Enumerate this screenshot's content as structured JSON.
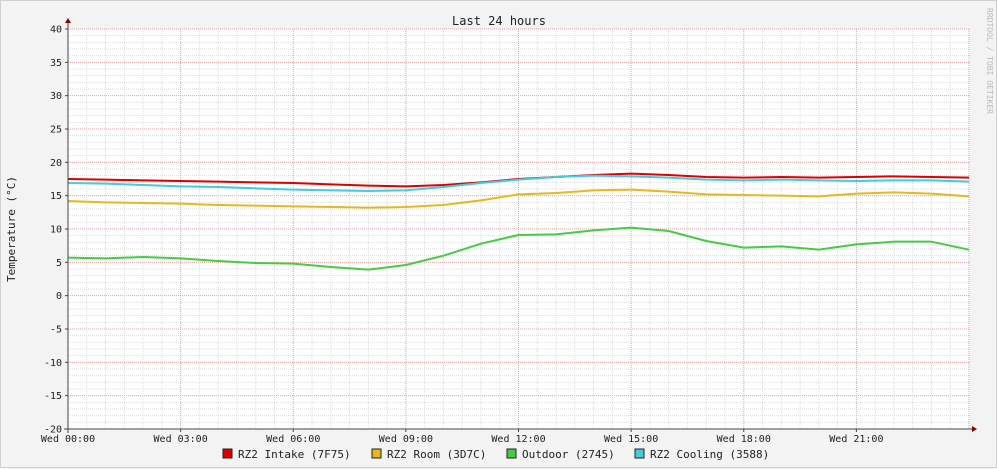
{
  "chart_data": {
    "type": "line",
    "title": "Last 24 hours",
    "ylabel": "Temperature (°C)",
    "xlabel": "",
    "watermark": "RRDTOOL / TOBI OETIKER",
    "ylim": [
      -20,
      40
    ],
    "yticks": [
      "40",
      "35",
      "30",
      "25",
      "20",
      "15",
      "10",
      "5",
      "0",
      "-5",
      "-10",
      "-15",
      "-20"
    ],
    "ytick_values": [
      40,
      35,
      30,
      25,
      20,
      15,
      10,
      5,
      0,
      -5,
      -10,
      -15,
      -20
    ],
    "x_range_hours": [
      0,
      24
    ],
    "xtick_labels": [
      "Wed 00:00",
      "Wed 03:00",
      "Wed 06:00",
      "Wed 09:00",
      "Wed 12:00",
      "Wed 15:00",
      "Wed 18:00",
      "Wed 21:00"
    ],
    "xtick_hours": [
      0,
      3,
      6,
      9,
      12,
      15,
      18,
      21
    ],
    "grid": true,
    "legend_position": "bottom",
    "x_hours": [
      0,
      1,
      2,
      3,
      4,
      5,
      6,
      7,
      8,
      9,
      10,
      11,
      12,
      13,
      14,
      15,
      16,
      17,
      18,
      19,
      20,
      21,
      22,
      23,
      24
    ],
    "series": [
      {
        "name": "RZ2 Intake (7F75)",
        "color": "#dd0000",
        "values": [
          17.5,
          17.4,
          17.3,
          17.2,
          17.1,
          17.0,
          16.9,
          16.7,
          16.5,
          16.4,
          16.6,
          17.0,
          17.5,
          17.8,
          18.1,
          18.3,
          18.1,
          17.8,
          17.7,
          17.8,
          17.7,
          17.8,
          17.9,
          17.8,
          17.7
        ]
      },
      {
        "name": "RZ2 Room (3D7C)",
        "color": "#e6b820",
        "values": [
          14.2,
          14.0,
          13.9,
          13.8,
          13.6,
          13.5,
          13.4,
          13.3,
          13.2,
          13.3,
          13.6,
          14.3,
          15.2,
          15.4,
          15.8,
          15.9,
          15.6,
          15.2,
          15.1,
          15.0,
          14.9,
          15.3,
          15.5,
          15.3,
          14.9
        ]
      },
      {
        "name": "Outdoor (2745)",
        "color": "#44cc44",
        "values": [
          5.7,
          5.6,
          5.8,
          5.6,
          5.2,
          4.9,
          4.8,
          4.3,
          3.9,
          4.6,
          6.0,
          7.8,
          9.1,
          9.2,
          9.8,
          10.2,
          9.7,
          8.2,
          7.2,
          7.4,
          6.9,
          7.7,
          8.1,
          8.1,
          6.9
        ]
      },
      {
        "name": "RZ2 Cooling (3588)",
        "color": "#44ccdd",
        "values": [
          16.9,
          16.8,
          16.6,
          16.4,
          16.3,
          16.1,
          15.9,
          15.8,
          15.7,
          15.8,
          16.3,
          16.9,
          17.4,
          17.8,
          18.0,
          17.9,
          17.7,
          17.4,
          17.3,
          17.4,
          17.3,
          17.2,
          17.3,
          17.3,
          17.1
        ]
      }
    ]
  }
}
